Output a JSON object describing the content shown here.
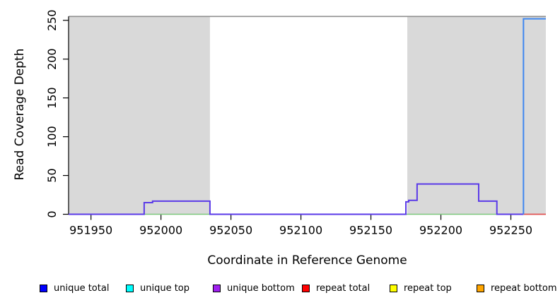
{
  "chart_data": {
    "type": "line",
    "title": "",
    "xlabel": "Coordinate in Reference Genome",
    "ylabel": "Read Coverage Depth",
    "xlim": [
      951934,
      952275
    ],
    "ylim": [
      0,
      258
    ],
    "x_ticks": [
      951950,
      952000,
      952050,
      952100,
      952150,
      952200,
      952250
    ],
    "y_ticks": [
      0,
      50,
      100,
      150,
      200,
      250
    ],
    "grid": false,
    "legend_position": "bottom",
    "background_color": "#ffffff",
    "repeat_region_color": "#d9d9d9",
    "repeat_regions": [
      {
        "start": 951934,
        "end": 952035
      },
      {
        "start": 952176,
        "end": 952275
      }
    ],
    "max_depth_line": {
      "value": 255,
      "color": "#8f8f8f"
    },
    "series": [
      {
        "name": "green zero baseline under left bump",
        "color": "#7cc87c",
        "width": 1.5,
        "points": [
          [
            951988,
            0
          ],
          [
            952035,
            0
          ]
        ]
      },
      {
        "name": "green zero baseline under right bump",
        "color": "#7cc87c",
        "width": 1.5,
        "points": [
          [
            952175,
            0
          ],
          [
            952240,
            0
          ]
        ]
      },
      {
        "name": "red zero baseline right of spike",
        "color": "#e05252",
        "width": 1.8,
        "points": [
          [
            952259,
            0
          ],
          [
            952275,
            0
          ]
        ]
      },
      {
        "name": "unique coverage step line",
        "color": "#5a3ae8",
        "width": 2,
        "points": [
          [
            951934,
            0
          ],
          [
            951988,
            0
          ],
          [
            951988,
            15
          ],
          [
            951994,
            15
          ],
          [
            951994,
            17
          ],
          [
            952035,
            17
          ],
          [
            952035,
            0
          ],
          [
            952175,
            0
          ],
          [
            952175,
            16
          ],
          [
            952177,
            16
          ],
          [
            952177,
            18
          ],
          [
            952183,
            18
          ],
          [
            952183,
            39
          ],
          [
            952227,
            39
          ],
          [
            952227,
            17
          ],
          [
            952240,
            17
          ],
          [
            952240,
            0
          ],
          [
            952259,
            0
          ]
        ]
      },
      {
        "name": "blue coverage spike",
        "color": "#3f87f0",
        "width": 2,
        "points": [
          [
            952259,
            0
          ],
          [
            952259,
            252
          ],
          [
            952275,
            252
          ]
        ]
      }
    ]
  },
  "legend": {
    "items": [
      {
        "label": "unique total",
        "color": "#0000ff"
      },
      {
        "label": "unique top",
        "color": "#00ffff"
      },
      {
        "label": "unique bottom",
        "color": "#a020f0"
      },
      {
        "label": "repeat total",
        "color": "#ff0000"
      },
      {
        "label": "repeat top",
        "color": "#ffff00"
      },
      {
        "label": "repeat bottom",
        "color": "#ffa500"
      }
    ]
  }
}
